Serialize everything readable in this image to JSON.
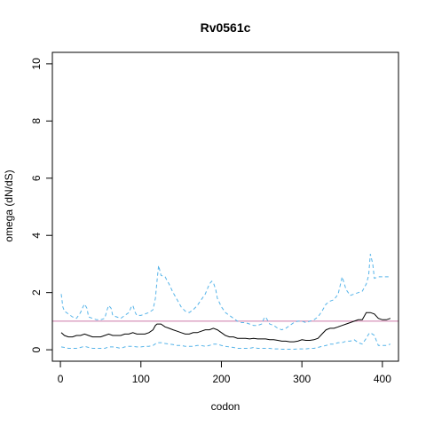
{
  "chart_data": {
    "type": "line",
    "title": "Rv0561c",
    "xlabel": "codon",
    "ylabel": "omega (dN/dS)",
    "xlim": [
      -10,
      420
    ],
    "ylim": [
      -0.4,
      10.4
    ],
    "x_ticks": [
      0,
      100,
      200,
      300,
      400
    ],
    "y_ticks": [
      0,
      2,
      4,
      6,
      8,
      10
    ],
    "x_tick_labels": [
      "0",
      "100",
      "200",
      "300",
      "400"
    ],
    "y_tick_labels": [
      "0",
      "2",
      "4",
      "6",
      "8",
      "10"
    ],
    "grid": false,
    "legend": "none",
    "reference_line": {
      "y": 1.0,
      "color": "#cc79a7"
    },
    "series": [
      {
        "role": "upper",
        "color": "#56b4e9",
        "dash": "dashed",
        "x": [
          1,
          3,
          5,
          10,
          15,
          20,
          25,
          28,
          30,
          33,
          35,
          40,
          45,
          50,
          55,
          58,
          60,
          63,
          65,
          70,
          75,
          80,
          85,
          88,
          90,
          93,
          95,
          100,
          105,
          110,
          115,
          118,
          120,
          122,
          125,
          130,
          135,
          140,
          145,
          150,
          155,
          160,
          165,
          170,
          175,
          180,
          185,
          188,
          190,
          193,
          195,
          200,
          205,
          210,
          215,
          220,
          225,
          230,
          235,
          240,
          245,
          250,
          253,
          255,
          260,
          265,
          270,
          275,
          280,
          285,
          290,
          295,
          300,
          305,
          310,
          315,
          320,
          325,
          330,
          335,
          340,
          345,
          348,
          350,
          355,
          360,
          365,
          370,
          375,
          380,
          383,
          385,
          388,
          390,
          395,
          400,
          405,
          410
        ],
        "y": [
          1.95,
          1.5,
          1.35,
          1.25,
          1.15,
          1.1,
          1.3,
          1.5,
          1.6,
          1.45,
          1.15,
          1.1,
          1.05,
          1.05,
          1.1,
          1.4,
          1.55,
          1.45,
          1.2,
          1.15,
          1.1,
          1.2,
          1.3,
          1.5,
          1.55,
          1.3,
          1.2,
          1.2,
          1.25,
          1.3,
          1.4,
          1.8,
          2.4,
          2.95,
          2.6,
          2.55,
          2.3,
          2.0,
          1.75,
          1.5,
          1.35,
          1.3,
          1.4,
          1.55,
          1.75,
          1.95,
          2.3,
          2.4,
          2.35,
          2.1,
          1.8,
          1.5,
          1.3,
          1.2,
          1.1,
          1.0,
          0.95,
          0.95,
          0.9,
          0.85,
          0.85,
          0.9,
          1.1,
          1.15,
          0.9,
          0.85,
          0.75,
          0.7,
          0.75,
          0.85,
          0.95,
          1.0,
          1.0,
          0.95,
          1.0,
          1.05,
          1.15,
          1.35,
          1.6,
          1.7,
          1.75,
          1.95,
          2.3,
          2.55,
          2.1,
          1.9,
          1.95,
          2.0,
          2.05,
          2.3,
          2.6,
          3.35,
          3.0,
          2.5,
          2.55,
          2.55,
          2.55,
          2.55
        ]
      },
      {
        "role": "mean",
        "color": "#000000",
        "dash": "solid",
        "x": [
          1,
          5,
          10,
          15,
          20,
          25,
          30,
          35,
          40,
          45,
          50,
          55,
          60,
          65,
          70,
          75,
          80,
          85,
          90,
          95,
          100,
          105,
          110,
          115,
          118,
          120,
          125,
          130,
          135,
          140,
          145,
          150,
          155,
          160,
          165,
          170,
          175,
          180,
          185,
          190,
          195,
          200,
          205,
          210,
          215,
          220,
          225,
          230,
          235,
          240,
          245,
          250,
          255,
          260,
          265,
          270,
          275,
          280,
          285,
          290,
          295,
          300,
          305,
          310,
          315,
          320,
          325,
          330,
          335,
          340,
          345,
          350,
          355,
          360,
          365,
          370,
          375,
          380,
          385,
          390,
          395,
          400,
          405,
          410
        ],
        "y": [
          0.6,
          0.5,
          0.45,
          0.45,
          0.5,
          0.5,
          0.55,
          0.5,
          0.45,
          0.45,
          0.45,
          0.5,
          0.55,
          0.5,
          0.5,
          0.5,
          0.55,
          0.55,
          0.6,
          0.55,
          0.55,
          0.55,
          0.6,
          0.7,
          0.85,
          0.9,
          0.9,
          0.8,
          0.75,
          0.7,
          0.65,
          0.6,
          0.55,
          0.55,
          0.6,
          0.6,
          0.65,
          0.7,
          0.7,
          0.75,
          0.7,
          0.6,
          0.5,
          0.45,
          0.45,
          0.4,
          0.4,
          0.4,
          0.38,
          0.4,
          0.38,
          0.38,
          0.38,
          0.35,
          0.35,
          0.33,
          0.3,
          0.3,
          0.28,
          0.28,
          0.3,
          0.35,
          0.33,
          0.33,
          0.35,
          0.4,
          0.55,
          0.7,
          0.75,
          0.75,
          0.8,
          0.85,
          0.9,
          0.95,
          1.0,
          1.05,
          1.05,
          1.3,
          1.3,
          1.25,
          1.1,
          1.05,
          1.05,
          1.1
        ]
      },
      {
        "role": "lower",
        "color": "#56b4e9",
        "dash": "dashed",
        "x": [
          1,
          5,
          10,
          15,
          20,
          25,
          30,
          35,
          40,
          45,
          50,
          55,
          60,
          65,
          70,
          75,
          80,
          85,
          90,
          95,
          100,
          105,
          110,
          115,
          120,
          125,
          130,
          135,
          140,
          145,
          150,
          155,
          160,
          165,
          170,
          175,
          180,
          185,
          190,
          195,
          200,
          205,
          210,
          215,
          220,
          225,
          230,
          235,
          240,
          245,
          250,
          255,
          260,
          265,
          270,
          275,
          280,
          285,
          290,
          295,
          300,
          305,
          310,
          315,
          320,
          325,
          330,
          335,
          340,
          345,
          350,
          355,
          360,
          365,
          370,
          375,
          380,
          383,
          385,
          390,
          395,
          400,
          405,
          410
        ],
        "y": [
          0.1,
          0.08,
          0.05,
          0.05,
          0.05,
          0.08,
          0.12,
          0.08,
          0.05,
          0.05,
          0.05,
          0.05,
          0.1,
          0.1,
          0.08,
          0.05,
          0.1,
          0.12,
          0.12,
          0.1,
          0.1,
          0.12,
          0.12,
          0.15,
          0.25,
          0.25,
          0.22,
          0.2,
          0.18,
          0.15,
          0.15,
          0.12,
          0.12,
          0.12,
          0.15,
          0.15,
          0.12,
          0.15,
          0.2,
          0.2,
          0.15,
          0.12,
          0.1,
          0.08,
          0.05,
          0.05,
          0.05,
          0.05,
          0.08,
          0.05,
          0.05,
          0.05,
          0.05,
          0.03,
          0.03,
          0.02,
          0.02,
          0.02,
          0.02,
          0.03,
          0.03,
          0.03,
          0.05,
          0.05,
          0.08,
          0.12,
          0.15,
          0.2,
          0.2,
          0.25,
          0.25,
          0.3,
          0.3,
          0.35,
          0.25,
          0.2,
          0.4,
          0.55,
          0.6,
          0.5,
          0.15,
          0.15,
          0.15,
          0.2
        ]
      }
    ]
  }
}
